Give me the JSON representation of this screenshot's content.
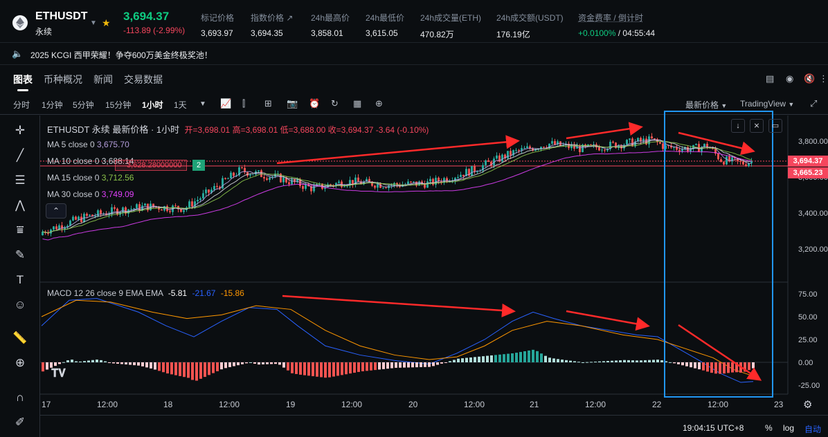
{
  "header": {
    "symbol": "ETHUSDT",
    "contract": "永续",
    "last_price": "3,694.37",
    "change": "-113.89 (-2.99%)",
    "stats": [
      {
        "label": "标记价格",
        "value": "3,693.97"
      },
      {
        "label": "指数价格",
        "value": "3,694.35"
      },
      {
        "label": "24h最高价",
        "value": "3,858.01"
      },
      {
        "label": "24h最低价",
        "value": "3,615.05"
      },
      {
        "label": "24h成交量(ETH)",
        "value": "470.82万"
      },
      {
        "label": "24h成交额(USDT)",
        "value": "176.19亿"
      },
      {
        "label": "资金费率 / 倒计时",
        "value": "+0.0100% / 04:55:44"
      }
    ]
  },
  "announcement": "2025 KCGI 西甲荣耀！争夺600万美金终极奖池！",
  "tabs": [
    "图表",
    "币种概况",
    "新闻",
    "交易数据"
  ],
  "intervals": [
    "分时",
    "1分钟",
    "5分钟",
    "15分钟",
    "1小时",
    "1天"
  ],
  "active_interval": "1小时",
  "toolbar_right": {
    "price_type": "最新价格",
    "chart_mode": "TradingView"
  },
  "legend": {
    "title": "ETHUSDT 永续 最新价格 · 1小时",
    "ohlc": "开=3,698.01 高=3,698.01 低=3,688.00 收=3,694.37 -3.64 (-0.10%)",
    "ma": [
      {
        "label": "MA 5 close 0",
        "value": "3,675.70",
        "color": "#b39ddb"
      },
      {
        "label": "MA 10 close 0",
        "value": "3,688.14",
        "color": "#d1d4dc"
      },
      {
        "label": "MA 15 close 0",
        "value": "3,712.56",
        "color": "#8bc34a"
      },
      {
        "label": "MA 30 close 0",
        "value": "3,749.09",
        "color": "#e040fb"
      }
    ],
    "macd_label": "MACD 12 26 close 9 EMA EMA",
    "macd_values": [
      "-5.81",
      "-21.67",
      "-15.86"
    ]
  },
  "pending_order": {
    "price": "3,628.28000000",
    "qty": "2"
  },
  "price_axis": [
    "3,800.00",
    "3,600.00",
    "3,400.00",
    "3,200.00"
  ],
  "price_tags": [
    {
      "value": "3,694.37",
      "color": "#f6465d"
    },
    {
      "value": "3,665.23",
      "color": "#f6465d"
    }
  ],
  "macd_axis": [
    "75.00",
    "50.00",
    "25.00",
    "0.00",
    "-25.00"
  ],
  "time_axis": [
    "17",
    "12:00",
    "18",
    "12:00",
    "19",
    "12:00",
    "20",
    "12:00",
    "21",
    "12:00",
    "22",
    "12:00",
    "23"
  ],
  "footer": {
    "clock": "19:04:15 UTC+8",
    "percent": "%",
    "log": "log",
    "auto": "自动"
  },
  "colors": {
    "up": "#26a69a",
    "down": "#ef5350",
    "annotation_arrow": "#ff2a2a",
    "highlight_box": "#2196f3"
  }
}
